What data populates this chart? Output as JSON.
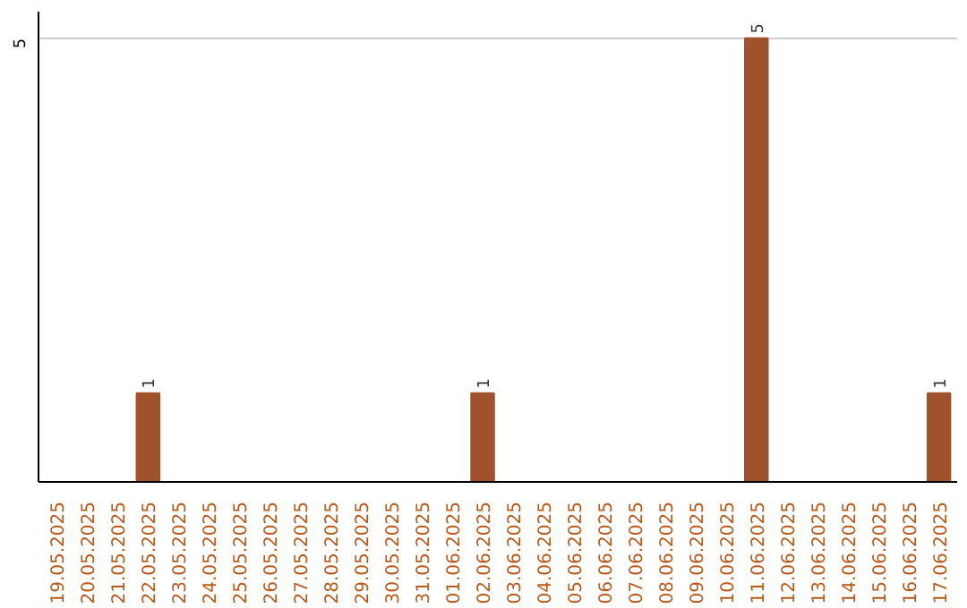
{
  "chart_data": {
    "type": "bar",
    "categories": [
      "19.05.2025",
      "20.05.2025",
      "21.05.2025",
      "22.05.2025",
      "23.05.2025",
      "24.05.2025",
      "25.05.2025",
      "26.05.2025",
      "27.05.2025",
      "28.05.2025",
      "29.05.2025",
      "30.05.2025",
      "31.05.2025",
      "01.06.2025",
      "02.06.2025",
      "03.06.2025",
      "04.06.2025",
      "05.06.2025",
      "06.06.2025",
      "07.06.2025",
      "08.06.2025",
      "09.06.2025",
      "10.06.2025",
      "11.06.2025",
      "12.06.2025",
      "13.06.2025",
      "14.06.2025",
      "15.06.2025",
      "16.06.2025",
      "17.06.2025"
    ],
    "values": [
      0,
      0,
      0,
      1,
      0,
      0,
      0,
      0,
      0,
      0,
      0,
      0,
      0,
      0,
      1,
      0,
      0,
      0,
      0,
      0,
      0,
      0,
      0,
      5,
      0,
      0,
      0,
      0,
      0,
      1
    ],
    "value_labels": [
      null,
      null,
      null,
      "1",
      null,
      null,
      null,
      null,
      null,
      null,
      null,
      null,
      null,
      null,
      "1",
      null,
      null,
      null,
      null,
      null,
      null,
      null,
      null,
      "5",
      null,
      null,
      null,
      null,
      null,
      "1"
    ],
    "color": "#a0522d",
    "ylim": [
      0,
      5.3
    ],
    "yticks": [
      5
    ],
    "grid": "y"
  }
}
